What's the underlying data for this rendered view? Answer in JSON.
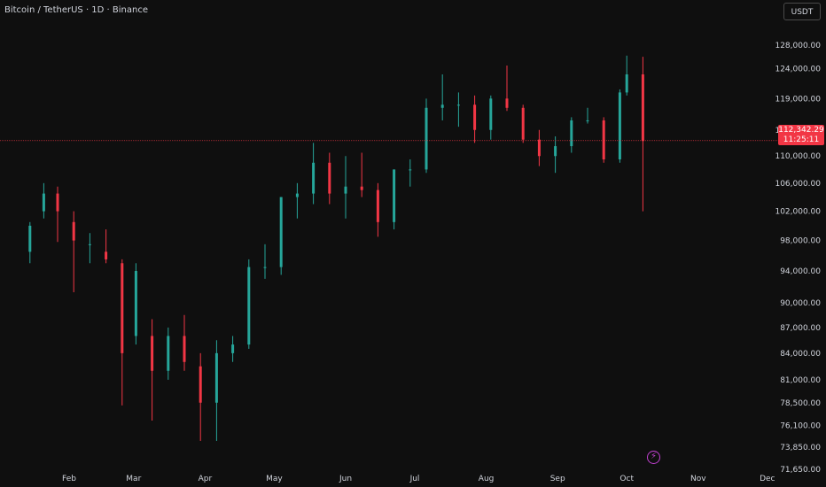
{
  "header": {
    "title": "Bitcoin / TetherUS · 1D · Binance",
    "currency": "USDT"
  },
  "last_price": {
    "value": "112,342.29",
    "countdown": "11:25:11"
  },
  "colors": {
    "background": "#0f0f0f",
    "up": "#26a69a",
    "down": "#f23645",
    "price_line": "#f23645"
  },
  "icons": {
    "bolt": "lightning-icon"
  },
  "chart_data": {
    "type": "candlestick",
    "title": "Bitcoin / TetherUS · 1D · Binance",
    "y_unit": "USDT",
    "y_tick_labels": [
      "128,000.00",
      "124,000.00",
      "119,000.00",
      "114,000.00",
      "110,000.00",
      "106,000.00",
      "102,000.00",
      "98,000.00",
      "94,000.00",
      "90,000.00",
      "87,000.00",
      "84,000.00",
      "81,000.00",
      "78,500.00",
      "76,100.00",
      "73,850.00",
      "71,650.00"
    ],
    "x_tick_labels": [
      "Feb",
      "Mar",
      "Apr",
      "May",
      "Jun",
      "Jul",
      "Aug",
      "Sep",
      "Oct",
      "Nov",
      "Dec"
    ],
    "ylim": [
      70800,
      131000
    ],
    "scale": "log",
    "price_line": 112342.29,
    "series": [
      {
        "date": "2025-01-15",
        "open": 96500,
        "high": 100500,
        "low": 95000,
        "close": 100000
      },
      {
        "date": "2025-01-21",
        "open": 102000,
        "high": 106000,
        "low": 101000,
        "close": 104500
      },
      {
        "date": "2025-01-27",
        "open": 104500,
        "high": 105500,
        "low": 97800,
        "close": 102000
      },
      {
        "date": "2025-02-03",
        "open": 100500,
        "high": 102000,
        "low": 91300,
        "close": 98000
      },
      {
        "date": "2025-02-10",
        "open": 97500,
        "high": 99000,
        "low": 95000,
        "close": 97500
      },
      {
        "date": "2025-02-17",
        "open": 96500,
        "high": 99500,
        "low": 95000,
        "close": 95500
      },
      {
        "date": "2025-02-24",
        "open": 95000,
        "high": 95500,
        "low": 78200,
        "close": 84000
      },
      {
        "date": "2025-03-02",
        "open": 86000,
        "high": 95000,
        "low": 85000,
        "close": 94000
      },
      {
        "date": "2025-03-09",
        "open": 86000,
        "high": 88000,
        "low": 76600,
        "close": 82000
      },
      {
        "date": "2025-03-16",
        "open": 82000,
        "high": 87000,
        "low": 81000,
        "close": 86000
      },
      {
        "date": "2025-03-23",
        "open": 86000,
        "high": 88500,
        "low": 82000,
        "close": 83000
      },
      {
        "date": "2025-03-30",
        "open": 82500,
        "high": 84000,
        "low": 74500,
        "close": 78500
      },
      {
        "date": "2025-04-06",
        "open": 78500,
        "high": 85500,
        "low": 74500,
        "close": 84000
      },
      {
        "date": "2025-04-13",
        "open": 84000,
        "high": 86000,
        "low": 83000,
        "close": 85000
      },
      {
        "date": "2025-04-20",
        "open": 85000,
        "high": 95500,
        "low": 84500,
        "close": 94500
      },
      {
        "date": "2025-04-27",
        "open": 94500,
        "high": 97500,
        "low": 93000,
        "close": 94500
      },
      {
        "date": "2025-05-04",
        "open": 94500,
        "high": 104000,
        "low": 93500,
        "close": 104000
      },
      {
        "date": "2025-05-11",
        "open": 104000,
        "high": 106000,
        "low": 101000,
        "close": 104500
      },
      {
        "date": "2025-05-18",
        "open": 104500,
        "high": 112000,
        "low": 103000,
        "close": 109000
      },
      {
        "date": "2025-05-25",
        "open": 109000,
        "high": 110500,
        "low": 103000,
        "close": 104500
      },
      {
        "date": "2025-06-01",
        "open": 104500,
        "high": 110000,
        "low": 101000,
        "close": 105500
      },
      {
        "date": "2025-06-08",
        "open": 105500,
        "high": 110500,
        "low": 104000,
        "close": 105000
      },
      {
        "date": "2025-06-15",
        "open": 105000,
        "high": 106000,
        "low": 98500,
        "close": 100500
      },
      {
        "date": "2025-06-22",
        "open": 100500,
        "high": 108000,
        "low": 99500,
        "close": 108000
      },
      {
        "date": "2025-06-29",
        "open": 108000,
        "high": 109500,
        "low": 105500,
        "close": 108000
      },
      {
        "date": "2025-07-06",
        "open": 108000,
        "high": 119000,
        "low": 107500,
        "close": 117500
      },
      {
        "date": "2025-07-13",
        "open": 117500,
        "high": 123000,
        "low": 115500,
        "close": 118000
      },
      {
        "date": "2025-07-20",
        "open": 118000,
        "high": 120000,
        "low": 114500,
        "close": 118000
      },
      {
        "date": "2025-07-27",
        "open": 118000,
        "high": 119500,
        "low": 112000,
        "close": 114000
      },
      {
        "date": "2025-08-03",
        "open": 114000,
        "high": 119500,
        "low": 112500,
        "close": 119000
      },
      {
        "date": "2025-08-10",
        "open": 119000,
        "high": 124500,
        "low": 117000,
        "close": 117500
      },
      {
        "date": "2025-08-17",
        "open": 117500,
        "high": 118000,
        "low": 112000,
        "close": 112500
      },
      {
        "date": "2025-08-24",
        "open": 112500,
        "high": 114000,
        "low": 108500,
        "close": 110000
      },
      {
        "date": "2025-08-31",
        "open": 110000,
        "high": 113000,
        "low": 107500,
        "close": 111500
      },
      {
        "date": "2025-09-07",
        "open": 111500,
        "high": 116000,
        "low": 110500,
        "close": 115500
      },
      {
        "date": "2025-09-14",
        "open": 115500,
        "high": 117500,
        "low": 115000,
        "close": 115500
      },
      {
        "date": "2025-09-21",
        "open": 115500,
        "high": 116000,
        "low": 109000,
        "close": 109500
      },
      {
        "date": "2025-09-28",
        "open": 109500,
        "high": 120500,
        "low": 109000,
        "close": 120000
      },
      {
        "date": "2025-10-01",
        "open": 120000,
        "high": 126200,
        "low": 119500,
        "close": 123000
      },
      {
        "date": "2025-10-08",
        "open": 123000,
        "high": 126000,
        "low": 102000,
        "close": 112300
      }
    ]
  }
}
